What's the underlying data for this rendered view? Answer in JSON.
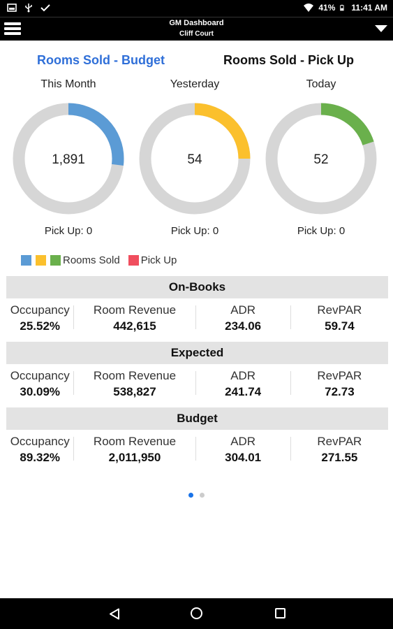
{
  "status_bar": {
    "battery": "41%",
    "time": "11:41 AM",
    "icons": [
      "image-icon",
      "usb-icon",
      "check-icon",
      "wifi-icon",
      "battery-icon"
    ]
  },
  "app_bar": {
    "title": "GM Dashboard",
    "subtitle": "Cliff Court"
  },
  "tabs": [
    {
      "label": "Rooms Sold - Budget",
      "active": true
    },
    {
      "label": "Rooms Sold - Pick Up",
      "active": false
    }
  ],
  "gauges": [
    {
      "label": "This Month",
      "value": "1,891",
      "fill_fraction": 0.27,
      "color": "#5b9bd5",
      "pickup": "Pick Up: 0"
    },
    {
      "label": "Yesterday",
      "value": "54",
      "fill_fraction": 0.25,
      "color": "#fbc02d",
      "pickup": "Pick Up: 0"
    },
    {
      "label": "Today",
      "value": "52",
      "fill_fraction": 0.2,
      "color": "#6ab04c",
      "pickup": "Pick Up: 0"
    }
  ],
  "gauge_track_color": "#d6d6d6",
  "legend": {
    "rooms_sold_label": "Rooms Sold",
    "pick_up_label": "Pick Up",
    "rooms_sold_colors": [
      "#5b9bd5",
      "#fbc02d",
      "#6ab04c"
    ],
    "pick_up_color": "#f04e5e"
  },
  "sections": [
    {
      "title": "On-Books",
      "metrics": [
        {
          "label": "Occupancy",
          "value": "25.52%"
        },
        {
          "label": "Room Revenue",
          "value": "442,615"
        },
        {
          "label": "ADR",
          "value": "234.06"
        },
        {
          "label": "RevPAR",
          "value": "59.74"
        }
      ]
    },
    {
      "title": "Expected",
      "metrics": [
        {
          "label": "Occupancy",
          "value": "30.09%"
        },
        {
          "label": "Room Revenue",
          "value": "538,827"
        },
        {
          "label": "ADR",
          "value": "241.74"
        },
        {
          "label": "RevPAR",
          "value": "72.73"
        }
      ]
    },
    {
      "title": "Budget",
      "metrics": [
        {
          "label": "Occupancy",
          "value": "89.32%"
        },
        {
          "label": "Room Revenue",
          "value": "2,011,950"
        },
        {
          "label": "ADR",
          "value": "304.01"
        },
        {
          "label": "RevPAR",
          "value": "271.55"
        }
      ]
    }
  ],
  "pager": {
    "page_count": 2,
    "current_page": 1,
    "active_color": "#1a73e8",
    "inactive_color": "#cccccc"
  }
}
